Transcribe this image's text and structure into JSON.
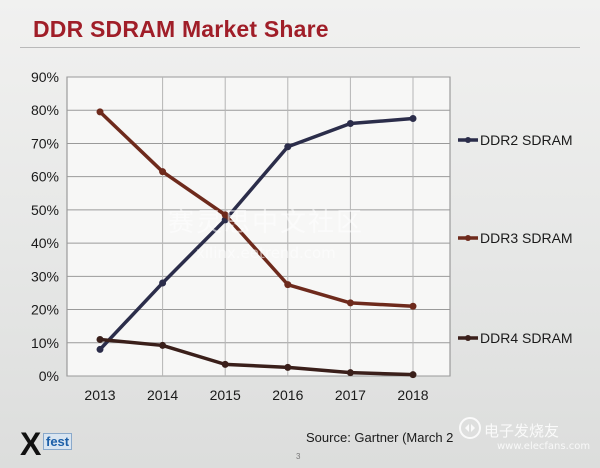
{
  "slide": {
    "title": "DDR SDRAM Market Share",
    "source": "Source: Gartner (March 2",
    "page_number": "3",
    "logo": {
      "x": "X",
      "text": "fest"
    },
    "watermark": {
      "cn": "赛灵思中文社区",
      "url": "xilinx.eetrend.com"
    },
    "brand": {
      "cn": "电子发烧友",
      "url": "www.elecfans.com"
    }
  },
  "chart_data": {
    "type": "line",
    "title": "",
    "xlabel": "",
    "ylabel": "",
    "x": [
      "2013",
      "2014",
      "2015",
      "2016",
      "2017",
      "2018"
    ],
    "ylim": [
      0,
      90
    ],
    "yticks": [
      "0%",
      "10%",
      "20%",
      "30%",
      "40%",
      "50%",
      "60%",
      "70%",
      "80%",
      "90%"
    ],
    "grid": true,
    "legend": "right",
    "series": [
      {
        "name": "DDR2 SDRAM",
        "color": "#2b2d4a",
        "values": [
          8,
          28,
          47,
          69,
          76,
          77.5
        ]
      },
      {
        "name": "DDR3 SDRAM",
        "color": "#6e2a1c",
        "values": [
          79.5,
          61.5,
          48.5,
          27.5,
          22,
          21
        ]
      },
      {
        "name": "DDR4 SDRAM",
        "color": "#3a1f1a",
        "values": [
          11,
          9.2,
          3.5,
          2.6,
          1,
          0.4
        ]
      }
    ]
  }
}
